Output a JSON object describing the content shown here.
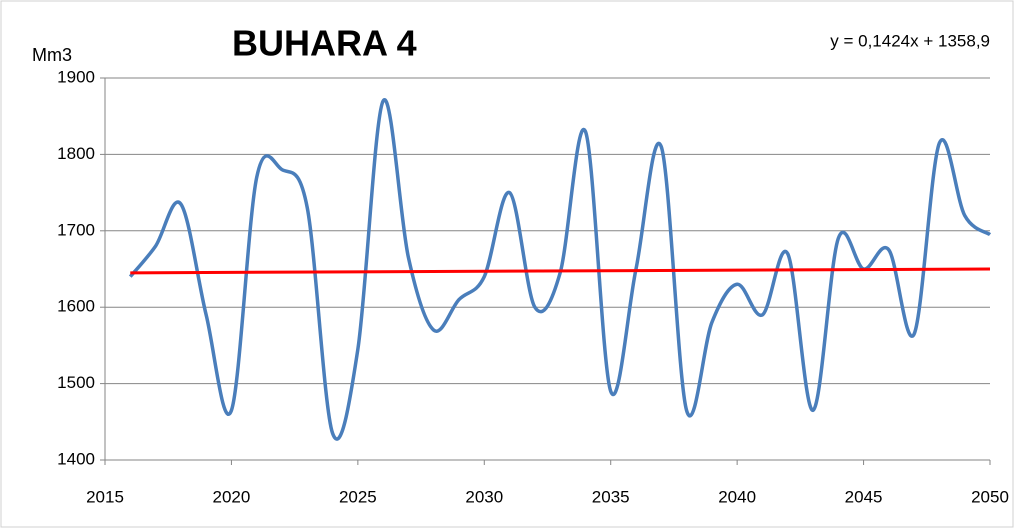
{
  "chart_data": {
    "type": "line",
    "title": "BUHARA 4",
    "y_label": "Mm3",
    "annotation": "y = 0,1424x + 1358,9",
    "x": [
      2016,
      2017,
      2018,
      2019,
      2020,
      2021,
      2022,
      2023,
      2024,
      2025,
      2026,
      2027,
      2028,
      2029,
      2030,
      2031,
      2032,
      2033,
      2034,
      2035,
      2036,
      2037,
      2038,
      2039,
      2040,
      2041,
      2042,
      2043,
      2044,
      2045,
      2046,
      2047,
      2048,
      2049,
      2050
    ],
    "series": [
      {
        "color": "#4a7ebb",
        "smooth": true,
        "values": [
          1640,
          1680,
          1735,
          1590,
          1465,
          1770,
          1780,
          1730,
          1435,
          1545,
          1870,
          1665,
          1570,
          1610,
          1640,
          1750,
          1600,
          1645,
          1830,
          1490,
          1650,
          1810,
          1465,
          1580,
          1630,
          1590,
          1670,
          1465,
          1690,
          1650,
          1675,
          1565,
          1815,
          1720,
          1695
        ]
      },
      {
        "color": "#ff0000",
        "x": [
          2016,
          2050
        ],
        "values": [
          1645,
          1650
        ]
      }
    ],
    "xlim": [
      2015,
      2050
    ],
    "xticks": [
      2015,
      2020,
      2025,
      2030,
      2035,
      2040,
      2045,
      2050
    ],
    "ylim": [
      1400,
      1900
    ],
    "yticks": [
      1400,
      1500,
      1600,
      1700,
      1800,
      1900
    ],
    "grid": true
  }
}
